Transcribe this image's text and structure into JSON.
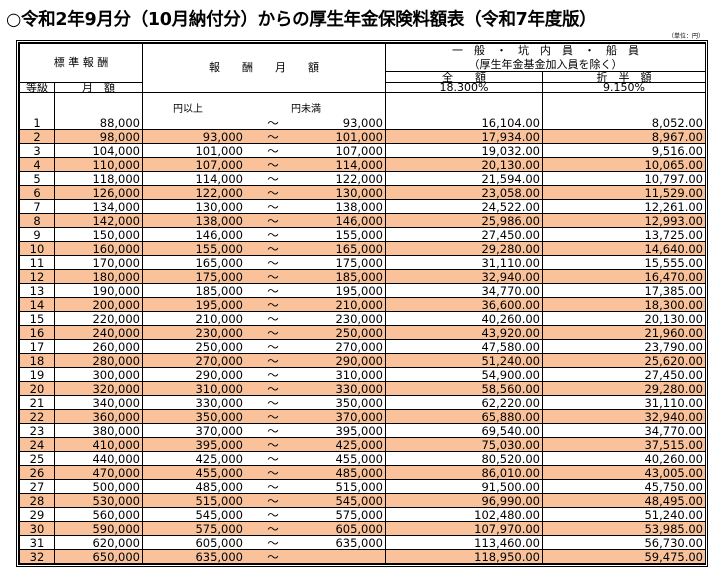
{
  "title": "○令和2年9月分（10月納付分）からの厚生年金保険料額表（令和7年度版）",
  "unit": "（単位：円）",
  "header": {
    "standard": "標 準 報 酬",
    "grade": "等級",
    "monthly": "月　額",
    "range": "報　　酬　　月　　額",
    "category_line1": "一　般　・　坑　内　員　・　船　員",
    "category_line2": "（厚生年金基金加入員を除く）",
    "full": "全　　額",
    "half": "折　半　額",
    "full_rate": "18.300%",
    "half_rate": "9.150%",
    "lower_label": "円以上",
    "upper_label": "円未満",
    "tilde": "～"
  },
  "highlight_color": "#f9c29a",
  "rows": [
    [
      "1",
      "88,000",
      "",
      "93,000",
      "16,104.00",
      "8,052.00"
    ],
    [
      "2",
      "98,000",
      "93,000",
      "101,000",
      "17,934.00",
      "8,967.00"
    ],
    [
      "3",
      "104,000",
      "101,000",
      "107,000",
      "19,032.00",
      "9,516.00"
    ],
    [
      "4",
      "110,000",
      "107,000",
      "114,000",
      "20,130.00",
      "10,065.00"
    ],
    [
      "5",
      "118,000",
      "114,000",
      "122,000",
      "21,594.00",
      "10,797.00"
    ],
    [
      "6",
      "126,000",
      "122,000",
      "130,000",
      "23,058.00",
      "11,529.00"
    ],
    [
      "7",
      "134,000",
      "130,000",
      "138,000",
      "24,522.00",
      "12,261.00"
    ],
    [
      "8",
      "142,000",
      "138,000",
      "146,000",
      "25,986.00",
      "12,993.00"
    ],
    [
      "9",
      "150,000",
      "146,000",
      "155,000",
      "27,450.00",
      "13,725.00"
    ],
    [
      "10",
      "160,000",
      "155,000",
      "165,000",
      "29,280.00",
      "14,640.00"
    ],
    [
      "11",
      "170,000",
      "165,000",
      "175,000",
      "31,110.00",
      "15,555.00"
    ],
    [
      "12",
      "180,000",
      "175,000",
      "185,000",
      "32,940.00",
      "16,470.00"
    ],
    [
      "13",
      "190,000",
      "185,000",
      "195,000",
      "34,770.00",
      "17,385.00"
    ],
    [
      "14",
      "200,000",
      "195,000",
      "210,000",
      "36,600.00",
      "18,300.00"
    ],
    [
      "15",
      "220,000",
      "210,000",
      "230,000",
      "40,260.00",
      "20,130.00"
    ],
    [
      "16",
      "240,000",
      "230,000",
      "250,000",
      "43,920.00",
      "21,960.00"
    ],
    [
      "17",
      "260,000",
      "250,000",
      "270,000",
      "47,580.00",
      "23,790.00"
    ],
    [
      "18",
      "280,000",
      "270,000",
      "290,000",
      "51,240.00",
      "25,620.00"
    ],
    [
      "19",
      "300,000",
      "290,000",
      "310,000",
      "54,900.00",
      "27,450.00"
    ],
    [
      "20",
      "320,000",
      "310,000",
      "330,000",
      "58,560.00",
      "29,280.00"
    ],
    [
      "21",
      "340,000",
      "330,000",
      "350,000",
      "62,220.00",
      "31,110.00"
    ],
    [
      "22",
      "360,000",
      "350,000",
      "370,000",
      "65,880.00",
      "32,940.00"
    ],
    [
      "23",
      "380,000",
      "370,000",
      "395,000",
      "69,540.00",
      "34,770.00"
    ],
    [
      "24",
      "410,000",
      "395,000",
      "425,000",
      "75,030.00",
      "37,515.00"
    ],
    [
      "25",
      "440,000",
      "425,000",
      "455,000",
      "80,520.00",
      "40,260.00"
    ],
    [
      "26",
      "470,000",
      "455,000",
      "485,000",
      "86,010.00",
      "43,005.00"
    ],
    [
      "27",
      "500,000",
      "485,000",
      "515,000",
      "91,500.00",
      "45,750.00"
    ],
    [
      "28",
      "530,000",
      "515,000",
      "545,000",
      "96,990.00",
      "48,495.00"
    ],
    [
      "29",
      "560,000",
      "545,000",
      "575,000",
      "102,480.00",
      "51,240.00"
    ],
    [
      "30",
      "590,000",
      "575,000",
      "605,000",
      "107,970.00",
      "53,985.00"
    ],
    [
      "31",
      "620,000",
      "605,000",
      "635,000",
      "113,460.00",
      "56,730.00"
    ],
    [
      "32",
      "650,000",
      "635,000",
      "",
      "118,950.00",
      "59,475.00"
    ]
  ]
}
